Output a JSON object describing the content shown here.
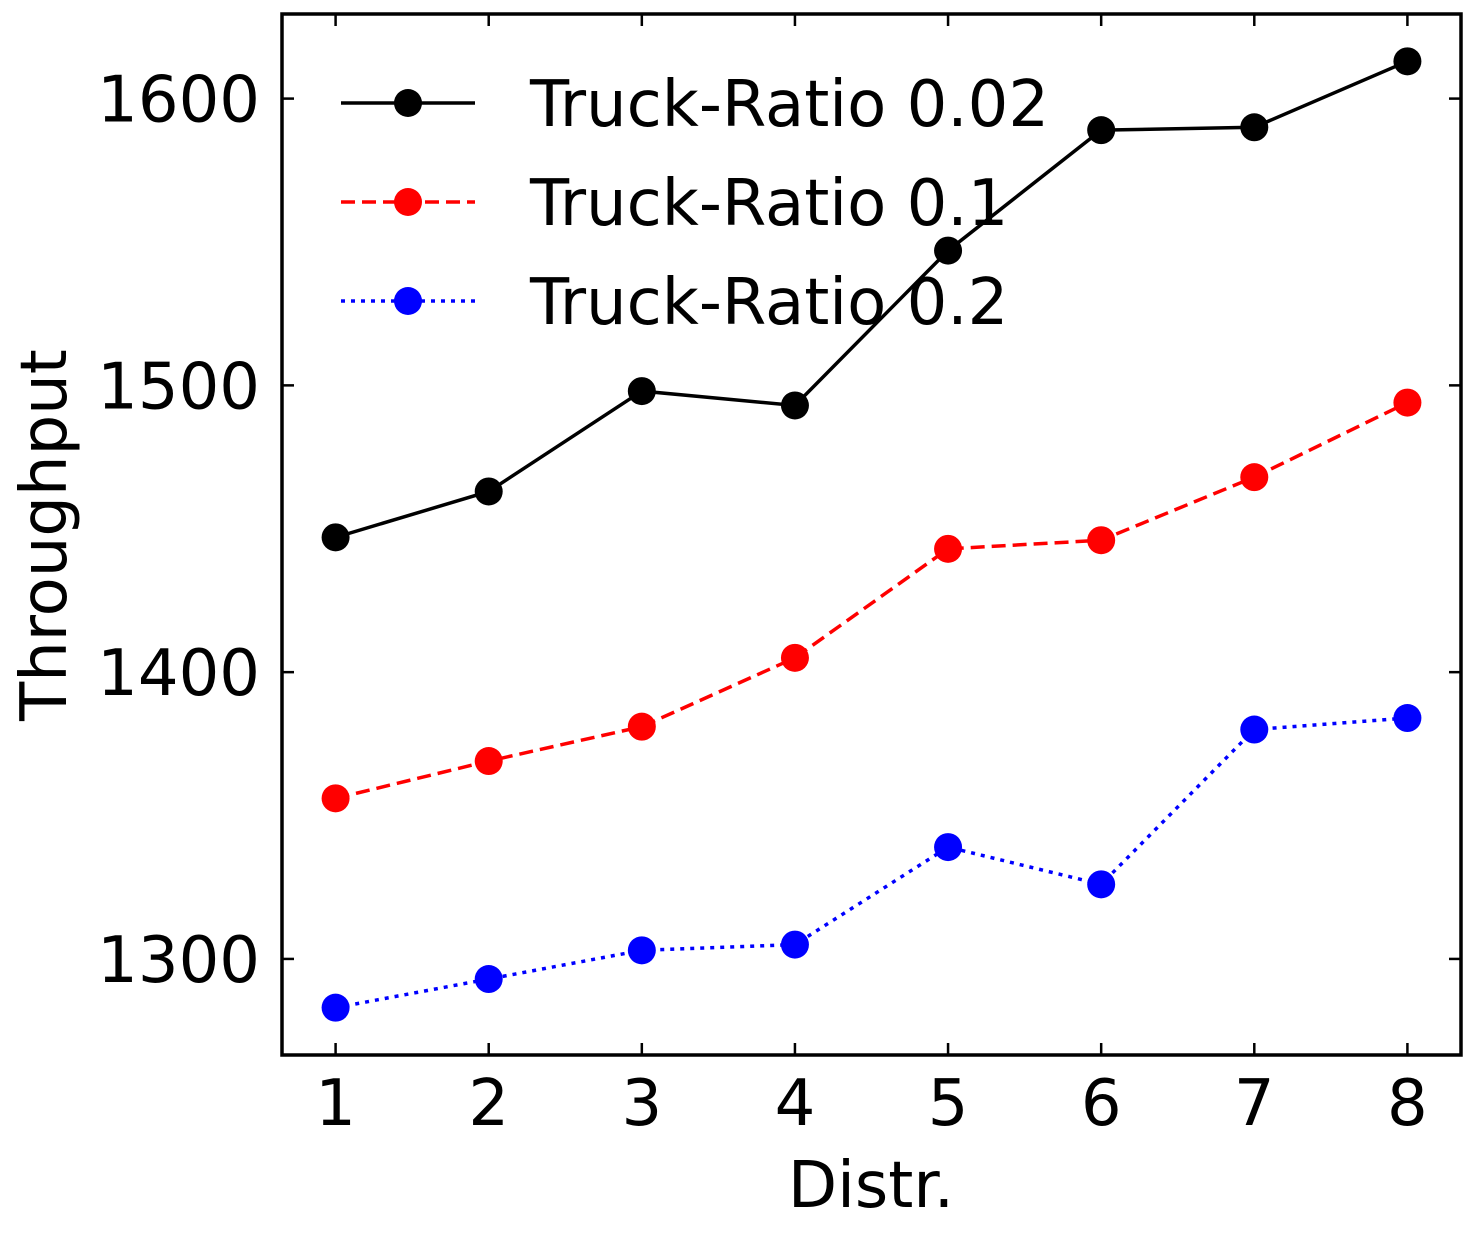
{
  "chart_data": {
    "type": "line",
    "title": "",
    "xlabel": "Distr.",
    "ylabel": "Throughput",
    "x": [
      1,
      2,
      3,
      4,
      5,
      6,
      7,
      8
    ],
    "xlim": [
      0.65,
      8.35
    ],
    "ylim": [
      1266.5,
      1629.5
    ],
    "yticks": [
      1300,
      1400,
      1500,
      1600
    ],
    "grid": false,
    "legend_position": "upper-left",
    "series": [
      {
        "name": "Truck-Ratio 0.02",
        "color": "#000000",
        "dash": "solid",
        "values": [
          1447,
          1463,
          1498,
          1493,
          1547,
          1589,
          1590,
          1613
        ]
      },
      {
        "name": "Truck-Ratio 0.1",
        "color": "#ff0000",
        "dash": "dashed",
        "values": [
          1356,
          1369,
          1381,
          1405,
          1443,
          1446,
          1468,
          1494
        ]
      },
      {
        "name": "Truck-Ratio 0.2",
        "color": "#0000ff",
        "dash": "dotted",
        "values": [
          1283,
          1293,
          1303,
          1305,
          1339,
          1326,
          1380,
          1384
        ]
      }
    ]
  }
}
